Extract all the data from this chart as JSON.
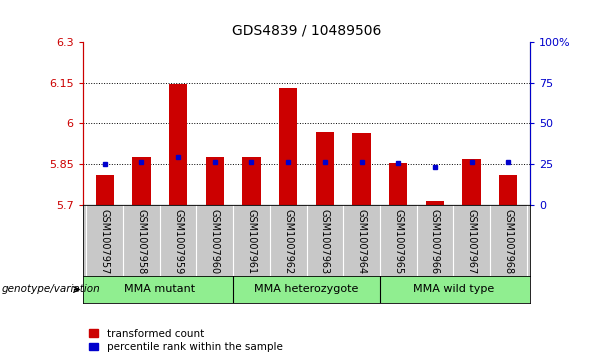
{
  "title": "GDS4839 / 10489506",
  "samples": [
    "GSM1007957",
    "GSM1007958",
    "GSM1007959",
    "GSM1007960",
    "GSM1007961",
    "GSM1007962",
    "GSM1007963",
    "GSM1007964",
    "GSM1007965",
    "GSM1007966",
    "GSM1007967",
    "GSM1007968"
  ],
  "bar_values": [
    5.81,
    5.875,
    6.145,
    5.875,
    5.875,
    6.13,
    5.97,
    5.965,
    5.855,
    5.715,
    5.87,
    5.81
  ],
  "blue_dot_values": [
    5.85,
    5.857,
    5.875,
    5.857,
    5.858,
    5.858,
    5.857,
    5.857,
    5.855,
    5.84,
    5.857,
    5.857
  ],
  "ylim": [
    5.7,
    6.3
  ],
  "y2lim": [
    0,
    100
  ],
  "yticks": [
    5.7,
    5.85,
    6.0,
    6.15,
    6.3
  ],
  "ytick_labels": [
    "5.7",
    "5.85",
    "6",
    "6.15",
    "6.3"
  ],
  "y2ticks": [
    0,
    25,
    50,
    75,
    100
  ],
  "y2tick_labels": [
    "0",
    "25",
    "50",
    "75",
    "100%"
  ],
  "hlines": [
    5.85,
    6.0,
    6.15
  ],
  "bar_color": "#cc0000",
  "blue_color": "#0000cc",
  "bar_width": 0.5,
  "groups": [
    {
      "label": "MMA mutant",
      "start": 0,
      "end": 3
    },
    {
      "label": "MMA heterozygote",
      "start": 4,
      "end": 7
    },
    {
      "label": "MMA wild type",
      "start": 8,
      "end": 11
    }
  ],
  "group_color": "#90ee90",
  "tick_area_color": "#c8c8c8",
  "label_prefix": "genotype/variation",
  "legend_items": [
    "transformed count",
    "percentile rank within the sample"
  ],
  "title_fontsize": 10,
  "axis_fontsize": 8,
  "tick_fontsize": 7
}
